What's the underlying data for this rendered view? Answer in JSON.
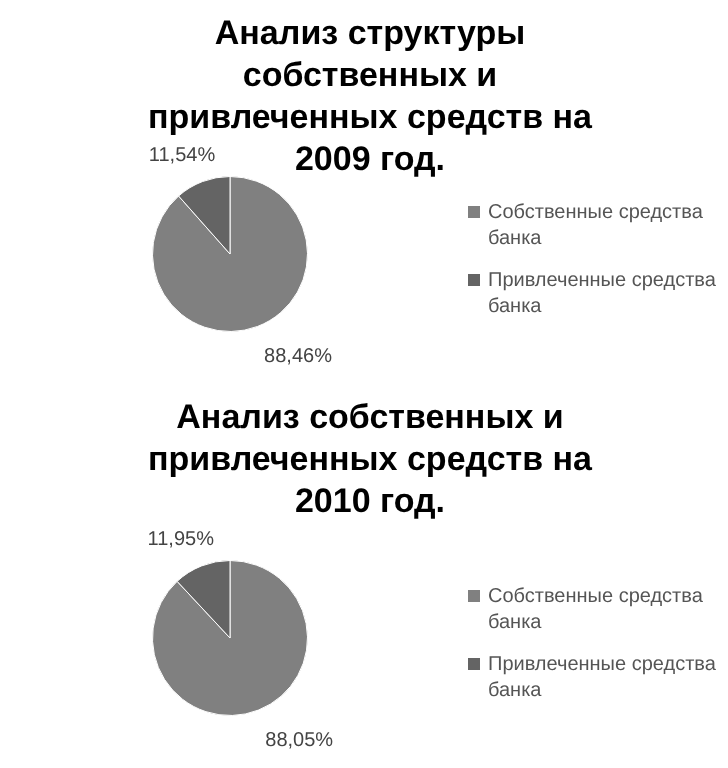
{
  "chart_data": [
    {
      "type": "pie",
      "title": "Анализ структуры собственных и привлеченных средств на 2009 год.",
      "categories": [
        "Собственные средства банка",
        "Привлеченные средства банка"
      ],
      "values": [
        88.46,
        11.54
      ],
      "colors": [
        "#808080",
        "#646464"
      ],
      "value_labels": [
        "88,46%",
        "11,54%"
      ],
      "legend": "right"
    },
    {
      "type": "pie",
      "title": "Анализ собственных и привлеченных средств на 2010 год.",
      "categories": [
        "Собственные средства банка",
        "Привлеченные средства банка"
      ],
      "values": [
        88.05,
        11.95
      ],
      "colors": [
        "#808080",
        "#646464"
      ],
      "value_labels": [
        "88,05%",
        "11,95%"
      ],
      "legend": "right"
    }
  ]
}
